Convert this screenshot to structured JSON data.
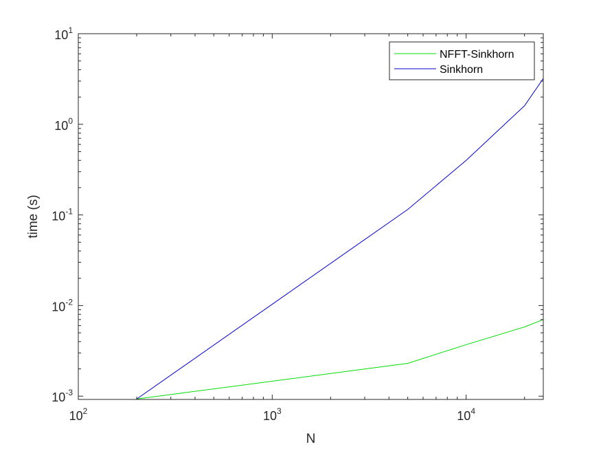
{
  "chart_data": {
    "type": "line",
    "xlabel": "N",
    "ylabel": "time (s)",
    "xscale": "log",
    "yscale": "log",
    "xlim": [
      100,
      25000
    ],
    "ylim": [
      0.00092,
      10
    ],
    "xticks": [
      {
        "value": 100,
        "base": "10",
        "exp": "2"
      },
      {
        "value": 1000,
        "base": "10",
        "exp": "3"
      },
      {
        "value": 10000,
        "base": "10",
        "exp": "4"
      }
    ],
    "yticks": [
      {
        "value": 0.001,
        "base": "10",
        "exp": "-3"
      },
      {
        "value": 0.01,
        "base": "10",
        "exp": "-2"
      },
      {
        "value": 0.1,
        "base": "10",
        "exp": "-1"
      },
      {
        "value": 1,
        "base": "10",
        "exp": "0"
      },
      {
        "value": 10,
        "base": "10",
        "exp": "1"
      }
    ],
    "grid": false,
    "legend_position": "top-right",
    "series": [
      {
        "name": "NFFT-Sinkhorn",
        "color": "#00dd00",
        "x": [
          200,
          5000,
          10000,
          20000,
          25000
        ],
        "y": [
          0.00093,
          0.0023,
          0.0037,
          0.0058,
          0.007
        ]
      },
      {
        "name": "Sinkhorn",
        "color": "#0000cc",
        "x": [
          200,
          5000,
          10000,
          20000,
          25000
        ],
        "y": [
          0.00093,
          0.115,
          0.4,
          1.6,
          3.2
        ]
      }
    ]
  }
}
